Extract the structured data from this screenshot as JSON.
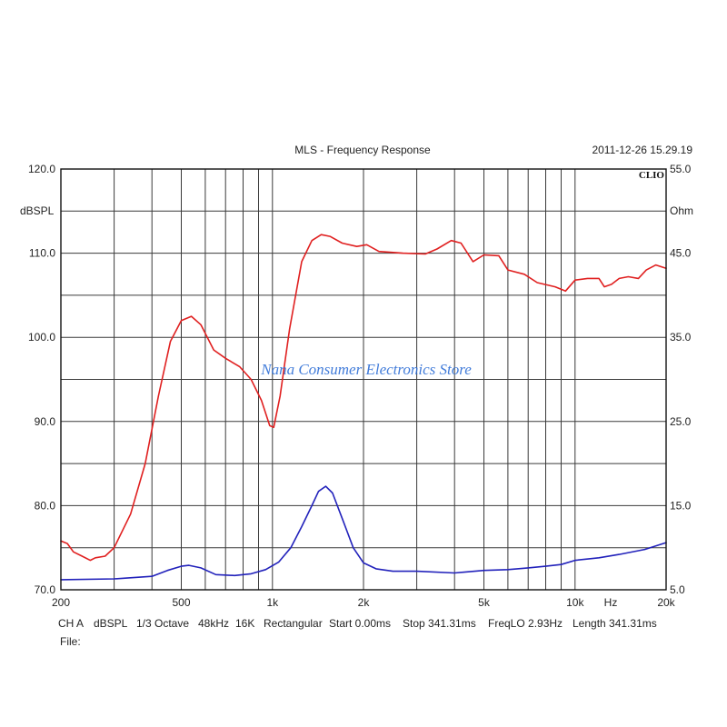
{
  "chart_data": {
    "type": "line",
    "title": "MLS - Frequency Response",
    "timestamp": "2011-12-26 15.29.19",
    "brand": "CLIO",
    "watermark": "Nana Consumer Electronics Store",
    "ylabel": "dBSPL",
    "y2label": "Ohm",
    "xunit": "Hz",
    "xscale": "log",
    "xlim": [
      200,
      20000
    ],
    "ylim": [
      70,
      120
    ],
    "y2lim": [
      5,
      55
    ],
    "grid": true,
    "x_ticks": [
      {
        "value": 200,
        "label": "200"
      },
      {
        "value": 500,
        "label": "500"
      },
      {
        "value": 1000,
        "label": "1k"
      },
      {
        "value": 2000,
        "label": "2k"
      },
      {
        "value": 5000,
        "label": "5k"
      },
      {
        "value": 10000,
        "label": "10k"
      },
      {
        "value": 20000,
        "label": "20k"
      }
    ],
    "x_gridlines": [
      300,
      400,
      500,
      600,
      700,
      800,
      900,
      1000,
      2000,
      3000,
      4000,
      5000,
      6000,
      7000,
      8000,
      9000,
      10000
    ],
    "y_ticks": [
      {
        "value": 120,
        "label": "120.0"
      },
      {
        "value": 110,
        "label": "110.0"
      },
      {
        "value": 100,
        "label": "100.0"
      },
      {
        "value": 90,
        "label": "90.0"
      },
      {
        "value": 80,
        "label": "80.0"
      },
      {
        "value": 70,
        "label": "70.0"
      }
    ],
    "y_gridlines": [
      75,
      80,
      85,
      90,
      95,
      100,
      105,
      110,
      115
    ],
    "y2_ticks": [
      {
        "value": 55,
        "label": "55.0"
      },
      {
        "value": 45,
        "label": "45.0"
      },
      {
        "value": 35,
        "label": "35.0"
      },
      {
        "value": 25,
        "label": "25.0"
      },
      {
        "value": 15,
        "label": "15.0"
      },
      {
        "value": 5,
        "label": "5.0"
      }
    ],
    "series": [
      {
        "color": "#e02020",
        "axis": "left",
        "points": [
          [
            200,
            75.8
          ],
          [
            210,
            75.5
          ],
          [
            220,
            74.5
          ],
          [
            235,
            74.0
          ],
          [
            250,
            73.5
          ],
          [
            260,
            73.8
          ],
          [
            280,
            74.0
          ],
          [
            300,
            75.0
          ],
          [
            340,
            79.0
          ],
          [
            380,
            85.0
          ],
          [
            420,
            93.0
          ],
          [
            460,
            99.5
          ],
          [
            500,
            102.0
          ],
          [
            540,
            102.5
          ],
          [
            580,
            101.5
          ],
          [
            640,
            98.5
          ],
          [
            700,
            97.5
          ],
          [
            780,
            96.5
          ],
          [
            850,
            95.0
          ],
          [
            920,
            92.5
          ],
          [
            980,
            89.5
          ],
          [
            1010,
            89.3
          ],
          [
            1060,
            93.0
          ],
          [
            1140,
            101.0
          ],
          [
            1250,
            109.0
          ],
          [
            1350,
            111.5
          ],
          [
            1450,
            112.2
          ],
          [
            1550,
            112.0
          ],
          [
            1700,
            111.2
          ],
          [
            1900,
            110.8
          ],
          [
            2050,
            111.0
          ],
          [
            2250,
            110.2
          ],
          [
            2700,
            110.0
          ],
          [
            3200,
            109.9
          ],
          [
            3500,
            110.5
          ],
          [
            3900,
            111.5
          ],
          [
            4200,
            111.2
          ],
          [
            4600,
            109.0
          ],
          [
            5000,
            109.8
          ],
          [
            5600,
            109.7
          ],
          [
            6000,
            108.0
          ],
          [
            6800,
            107.5
          ],
          [
            7500,
            106.5
          ],
          [
            8600,
            106.0
          ],
          [
            9300,
            105.5
          ],
          [
            10000,
            106.8
          ],
          [
            11000,
            107.0
          ],
          [
            12000,
            107.0
          ],
          [
            12500,
            106.0
          ],
          [
            13200,
            106.3
          ],
          [
            14000,
            107.0
          ],
          [
            15000,
            107.2
          ],
          [
            16200,
            107.0
          ],
          [
            17200,
            108.0
          ],
          [
            18500,
            108.6
          ],
          [
            20000,
            108.2
          ]
        ]
      },
      {
        "color": "#2222bb",
        "axis": "right",
        "points": [
          [
            200,
            6.2
          ],
          [
            300,
            6.3
          ],
          [
            400,
            6.6
          ],
          [
            450,
            7.3
          ],
          [
            500,
            7.8
          ],
          [
            530,
            7.9
          ],
          [
            580,
            7.6
          ],
          [
            650,
            6.8
          ],
          [
            750,
            6.7
          ],
          [
            850,
            6.9
          ],
          [
            950,
            7.4
          ],
          [
            1050,
            8.3
          ],
          [
            1150,
            10.0
          ],
          [
            1250,
            12.5
          ],
          [
            1350,
            15.0
          ],
          [
            1420,
            16.7
          ],
          [
            1500,
            17.3
          ],
          [
            1580,
            16.5
          ],
          [
            1700,
            13.5
          ],
          [
            1850,
            10.0
          ],
          [
            2000,
            8.2
          ],
          [
            2200,
            7.5
          ],
          [
            2500,
            7.2
          ],
          [
            3000,
            7.2
          ],
          [
            4000,
            7.0
          ],
          [
            5000,
            7.3
          ],
          [
            6000,
            7.4
          ],
          [
            7000,
            7.6
          ],
          [
            8000,
            7.8
          ],
          [
            9000,
            8.0
          ],
          [
            10000,
            8.5
          ],
          [
            12000,
            8.8
          ],
          [
            14000,
            9.2
          ],
          [
            17000,
            9.8
          ],
          [
            20000,
            10.6
          ]
        ]
      }
    ]
  },
  "footer": {
    "channel": "CH A",
    "unit": "dBSPL",
    "smoothing": "1/3 Octave",
    "sample_rate": "48kHz",
    "fft": "16K",
    "window": "Rectangular",
    "start": "Start 0.00ms",
    "stop": "Stop 341.31ms",
    "freqlo": "FreqLO 2.93Hz",
    "length": "Length 341.31ms",
    "file_label": "File:"
  }
}
